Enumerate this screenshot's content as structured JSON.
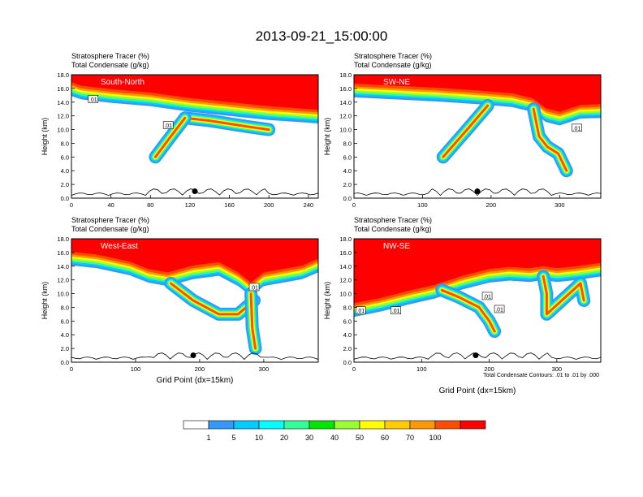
{
  "figure": {
    "title": "2013-09-21_15:00:00",
    "contour_note": "Total Condensate Contours: .01 to .01 by .000"
  },
  "colorbar": {
    "labels": [
      "1",
      "5",
      "10",
      "20",
      "30",
      "40",
      "50",
      "60",
      "70",
      "100"
    ],
    "colors": [
      "#ffffff",
      "#3399ff",
      "#00ccff",
      "#00ffff",
      "#33ff99",
      "#00e600",
      "#99ff33",
      "#ffff00",
      "#ffcc00",
      "#ff9900",
      "#ff4d00",
      "#ff0000"
    ]
  },
  "chart_data": [
    {
      "type": "heatmap",
      "panel_label": "South-North",
      "title_line1": "Stratosphere Tracer   (%)",
      "title_line2": "Total Condensate   (g/kg)",
      "xlabel": "",
      "ylabel": "Height (km)",
      "xlim": [
        0,
        250
      ],
      "ylim": [
        0,
        18
      ],
      "xticks": [
        "0",
        "40",
        "80",
        "120",
        "160",
        "200",
        "240"
      ],
      "xtick_values": [
        0,
        40,
        80,
        120,
        160,
        200,
        240
      ],
      "yticks": [
        "0.0",
        "2.0",
        "4.0",
        "6.0",
        "8.0",
        "10.0",
        "12.0",
        "14.0",
        "16.0",
        "18.0"
      ],
      "contour_labels": [
        ".01",
        ".01"
      ],
      "contour_label_pos": [
        [
          22,
          14.4
        ],
        [
          98,
          10.6
        ]
      ],
      "marker": [
        125,
        1.0
      ],
      "tropopause": [
        [
          0,
          15.8
        ],
        [
          10,
          15.3
        ],
        [
          40,
          14.8
        ],
        [
          80,
          14.3
        ],
        [
          120,
          13.5
        ],
        [
          160,
          12.9
        ],
        [
          200,
          12.3
        ],
        [
          250,
          11.8
        ]
      ],
      "plume": [
        [
          115,
          11.7
        ],
        [
          140,
          11.3
        ],
        [
          180,
          10.4
        ],
        [
          200,
          10.0
        ]
      ],
      "plume_tail": [
        [
          115,
          11.7
        ],
        [
          98,
          8.5
        ],
        [
          85,
          6.0
        ]
      ]
    },
    {
      "type": "heatmap",
      "panel_label": "SW-NE",
      "title_line1": "Stratosphere Tracer   (%)",
      "title_line2": "Total Condensate   (g/kg)",
      "xlabel": "",
      "ylabel": "Height (km)",
      "xlim": [
        0,
        360
      ],
      "ylim": [
        0,
        18
      ],
      "xticks": [
        "0",
        "100",
        "200",
        "300"
      ],
      "xtick_values": [
        0,
        100,
        200,
        300
      ],
      "yticks": [
        "0.0",
        "2.0",
        "4.0",
        "6.0",
        "8.0",
        "10.0",
        "12.0",
        "14.0",
        "16.0",
        "18.0"
      ],
      "contour_labels": [
        ".01"
      ],
      "contour_label_pos": [
        [
          325,
          10.2
        ]
      ],
      "marker": [
        180,
        1.0
      ],
      "tropopause": [
        [
          0,
          15.6
        ],
        [
          60,
          15.3
        ],
        [
          120,
          15.0
        ],
        [
          180,
          14.6
        ],
        [
          230,
          14.2
        ],
        [
          260,
          13.5
        ],
        [
          280,
          12.0
        ],
        [
          300,
          11.5
        ],
        [
          330,
          12.5
        ],
        [
          360,
          12.6
        ]
      ],
      "plume": [
        [
          195,
          13.5
        ],
        [
          165,
          10.0
        ],
        [
          130,
          6.0
        ]
      ],
      "plume_tail": [
        [
          262,
          13.0
        ],
        [
          270,
          9.0
        ],
        [
          282,
          7.5
        ],
        [
          298,
          6.5
        ],
        [
          310,
          4.0
        ]
      ]
    },
    {
      "type": "heatmap",
      "panel_label": "West-East",
      "title_line1": "Stratosphere Tracer   (%)",
      "title_line2": "Total Condensate   (g/kg)",
      "xlabel": "Grid Point (dx=15km)",
      "ylabel": "Height (km)",
      "xlim": [
        0,
        385
      ],
      "ylim": [
        0,
        18
      ],
      "xticks": [
        "0",
        "100",
        "200",
        "300"
      ],
      "xtick_values": [
        0,
        100,
        200,
        300
      ],
      "yticks": [
        "0.0",
        "2.0",
        "4.0",
        "6.0",
        "8.0",
        "10.0",
        "12.0",
        "14.0",
        "16.0",
        "18.0"
      ],
      "contour_labels": [
        ".01"
      ],
      "contour_label_pos": [
        [
          285,
          10.9
        ]
      ],
      "marker": [
        190,
        1.0
      ],
      "tropopause": [
        [
          0,
          15.0
        ],
        [
          40,
          14.6
        ],
        [
          90,
          13.6
        ],
        [
          120,
          12.5
        ],
        [
          150,
          12.0
        ],
        [
          190,
          13.0
        ],
        [
          230,
          13.5
        ],
        [
          260,
          12.0
        ],
        [
          280,
          10.5
        ],
        [
          300,
          12.0
        ],
        [
          330,
          12.5
        ],
        [
          360,
          13.0
        ],
        [
          385,
          14.0
        ]
      ],
      "plume": [
        [
          155,
          11.5
        ],
        [
          190,
          9.0
        ],
        [
          230,
          7.0
        ],
        [
          260,
          7.0
        ],
        [
          285,
          9.0
        ]
      ],
      "plume_tail": [
        [
          280,
          10.0
        ],
        [
          282,
          5.0
        ],
        [
          287,
          2.0
        ]
      ]
    },
    {
      "type": "heatmap",
      "panel_label": "NW-SE",
      "title_line1": "Stratosphere Tracer   (%)",
      "title_line2": "Total Condensate   (g/kg)",
      "xlabel": "Grid Point (dx=15km)",
      "ylabel": "Height (km)",
      "xlim": [
        0,
        365
      ],
      "ylim": [
        0,
        18
      ],
      "xticks": [
        "0",
        "100",
        "200",
        "300"
      ],
      "xtick_values": [
        0,
        100,
        200,
        300
      ],
      "yticks": [
        "0.0",
        "2.0",
        "4.0",
        "6.0",
        "8.0",
        "10.0",
        "12.0",
        "14.0",
        "16.0",
        "18.0"
      ],
      "contour_labels": [
        ".01",
        ".01",
        ".01",
        ".01"
      ],
      "contour_label_pos": [
        [
          10,
          7.5
        ],
        [
          62,
          7.5
        ],
        [
          197,
          9.6
        ],
        [
          215,
          7.7
        ]
      ],
      "marker": [
        180,
        1.0
      ],
      "tropopause": [
        [
          0,
          7.5
        ],
        [
          40,
          8.3
        ],
        [
          80,
          9.3
        ],
        [
          120,
          10.2
        ],
        [
          160,
          11.5
        ],
        [
          200,
          12.5
        ],
        [
          230,
          12.8
        ],
        [
          260,
          12.6
        ],
        [
          280,
          12.9
        ],
        [
          300,
          12.6
        ],
        [
          330,
          12.9
        ],
        [
          365,
          13.4
        ]
      ],
      "plume": [
        [
          130,
          10.5
        ],
        [
          155,
          9.5
        ],
        [
          185,
          8.0
        ],
        [
          200,
          6.0
        ],
        [
          208,
          4.5
        ]
      ],
      "plume_tail": [
        [
          280,
          12.5
        ],
        [
          285,
          10.0
        ],
        [
          285,
          7.0
        ],
        [
          335,
          11.5
        ],
        [
          340,
          9.0
        ]
      ]
    }
  ]
}
